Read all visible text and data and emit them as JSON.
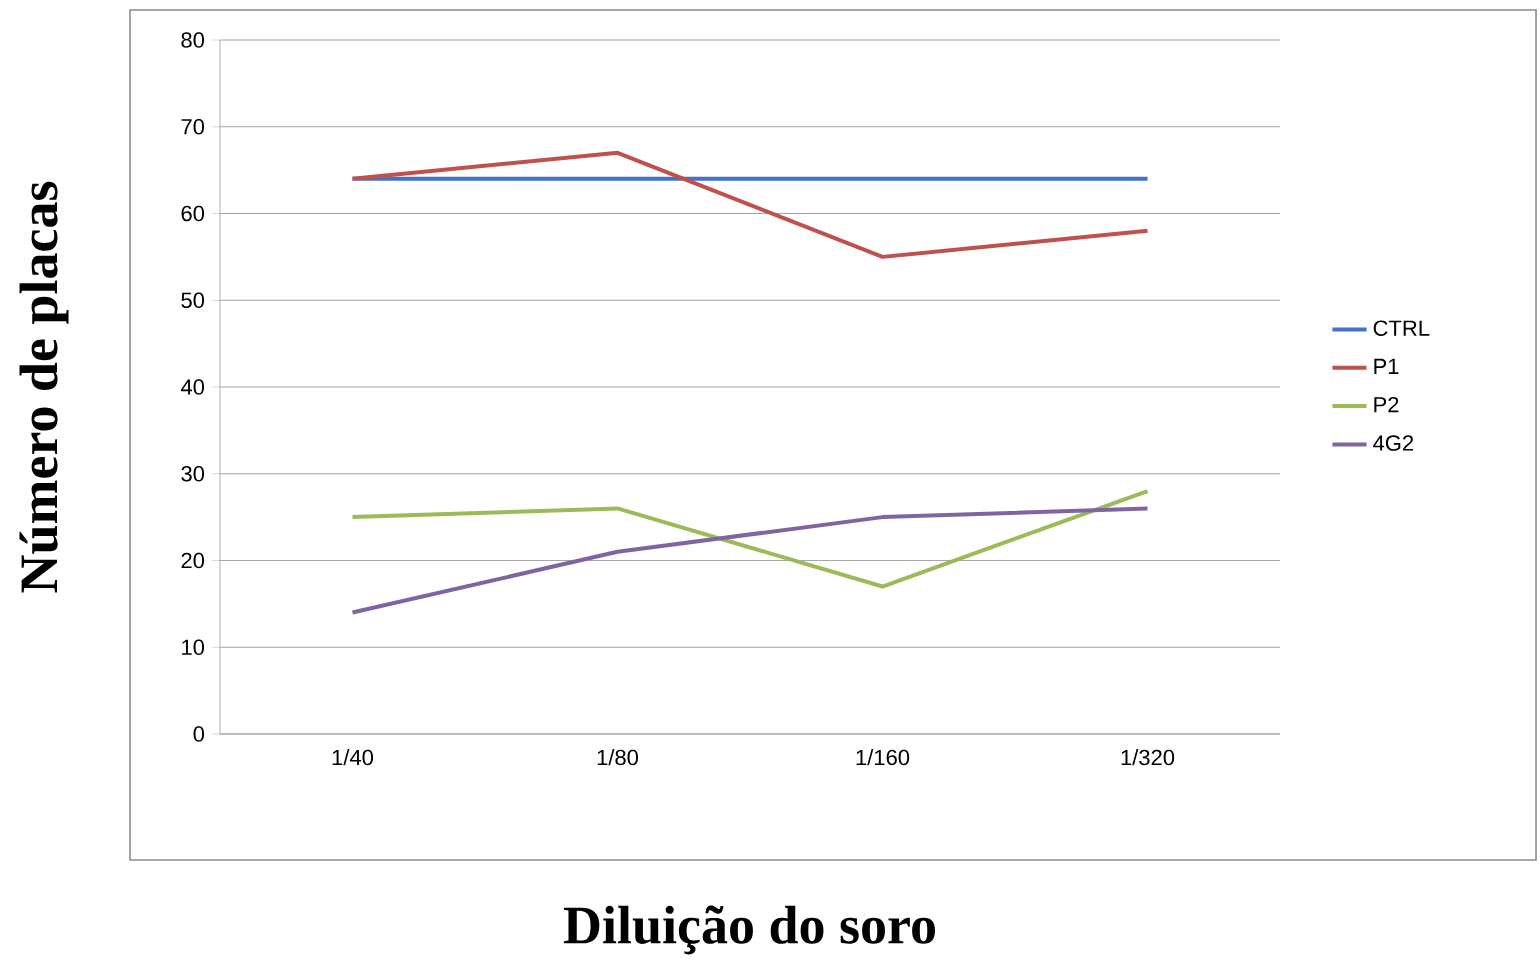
{
  "chart_data": {
    "type": "line",
    "xlabel": "Diluição do soro",
    "ylabel": "Número de placas",
    "categories": [
      "1/40",
      "1/80",
      "1/160",
      "1/320"
    ],
    "series": [
      {
        "name": "CTRL",
        "color": "#4472c4",
        "values": [
          64,
          64,
          64,
          64
        ]
      },
      {
        "name": "P1",
        "color": "#c0504d",
        "values": [
          64,
          67,
          55,
          58
        ]
      },
      {
        "name": "P2",
        "color": "#9bbb59",
        "values": [
          25,
          26,
          17,
          28
        ]
      },
      {
        "name": "4G2",
        "color": "#8064a2",
        "values": [
          14,
          21,
          25,
          26
        ]
      }
    ],
    "ylim": [
      0,
      80
    ],
    "yticks": [
      0,
      10,
      20,
      30,
      40,
      50,
      60,
      70,
      80
    ],
    "grid": "y",
    "legend": "right",
    "marker": "none",
    "line_style": "solid"
  }
}
